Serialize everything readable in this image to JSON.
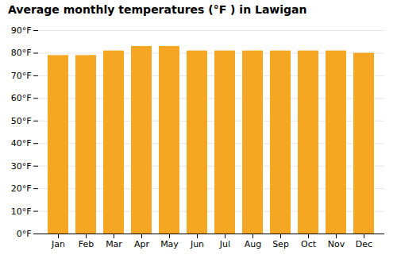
{
  "chart_data": {
    "type": "bar",
    "title": "Average monthly temperatures (°F ) in Lawigan",
    "categories": [
      "Jan",
      "Feb",
      "Mar",
      "Apr",
      "May",
      "Jun",
      "Jul",
      "Aug",
      "Sep",
      "Oct",
      "Nov",
      "Dec"
    ],
    "values": [
      79,
      79,
      81,
      83,
      83,
      81,
      81,
      81,
      81,
      81,
      81,
      80
    ],
    "color": "#F5A623",
    "ylim": [
      0,
      90
    ],
    "yticks": [
      {
        "value": 0,
        "label": "0°F"
      },
      {
        "value": 10,
        "label": "10°F"
      },
      {
        "value": 20,
        "label": "20°F"
      },
      {
        "value": 30,
        "label": "30°F"
      },
      {
        "value": 40,
        "label": "40°F"
      },
      {
        "value": 50,
        "label": "50°F"
      },
      {
        "value": 60,
        "label": "60°F"
      },
      {
        "value": 70,
        "label": "70°F"
      },
      {
        "value": 80,
        "label": "80°F"
      },
      {
        "value": 90,
        "label": "90°F"
      }
    ],
    "grid": true
  }
}
